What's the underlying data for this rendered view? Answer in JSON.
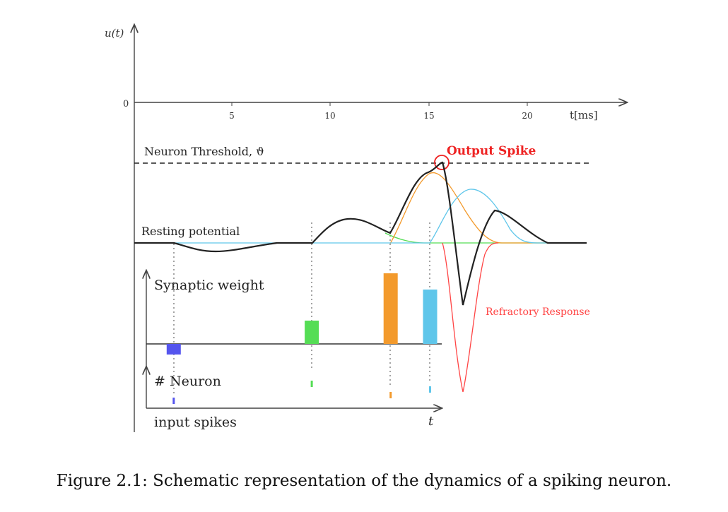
{
  "figure": {
    "y_axis_label": "u(t)",
    "zero_label": "0",
    "x_ticks": [
      "5",
      "10",
      "15",
      "20"
    ],
    "x_axis_label": "t[ms]",
    "threshold_label": "Neuron Threshold, ϑ",
    "output_spike_label": "Output Spike",
    "resting_label": "Resting potential",
    "refractory_label": "Refractory Response",
    "synaptic_label": "Synaptic weight",
    "neuron_label": "# Neuron",
    "input_spikes_label": "input spikes",
    "t_label": "t",
    "caption": "Figure 2.1: Schematic representation of the dynamics of a spiking neuron."
  },
  "input_spikes": [
    {
      "time_ms": 2,
      "weight": -0.15,
      "neuron_level": 1,
      "color": "#5555ee"
    },
    {
      "time_ms": 9,
      "weight": 0.33,
      "neuron_level": 4,
      "color": "#55dd55"
    },
    {
      "time_ms": 13,
      "weight": 1.0,
      "neuron_level": 2,
      "color": "#f39a2c"
    },
    {
      "time_ms": 15,
      "weight": 0.77,
      "neuron_level": 3,
      "color": "#5fc6ea"
    }
  ],
  "colors": {
    "membrane": "#222222",
    "output_spike": "#ee2222",
    "refractory": "#ff4444",
    "green_psp": "#55dd55",
    "orange_psp": "#f39a2c",
    "blue_psp": "#5fc6ea",
    "threshold": "#222222"
  }
}
